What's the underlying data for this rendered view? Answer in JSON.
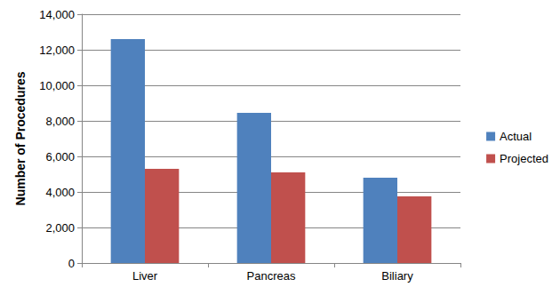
{
  "chart_data": {
    "type": "bar",
    "y_label": "Number of Procedures",
    "categories": [
      "Liver",
      "Pancreas",
      "Biliary"
    ],
    "series": [
      {
        "name": "Actual",
        "color": "#4f81bd",
        "values": [
          12600,
          8450,
          4800
        ]
      },
      {
        "name": "Projected",
        "color": "#c0504d",
        "values": [
          5300,
          5100,
          3750
        ]
      }
    ],
    "ylim": [
      0,
      14000
    ],
    "yticks": [
      0,
      {
        "value": 2000,
        "label": "2,000"
      },
      {
        "value": 4000,
        "label": "4,000"
      },
      {
        "value": 6000,
        "label": "6,000"
      },
      {
        "value": 8000,
        "label": "8,000"
      },
      {
        "value": 10000,
        "label": "10,000"
      },
      {
        "value": 12000,
        "label": "12,000"
      },
      {
        "value": 14000,
        "label": "14,000"
      }
    ],
    "grid": true,
    "legend": "right"
  }
}
